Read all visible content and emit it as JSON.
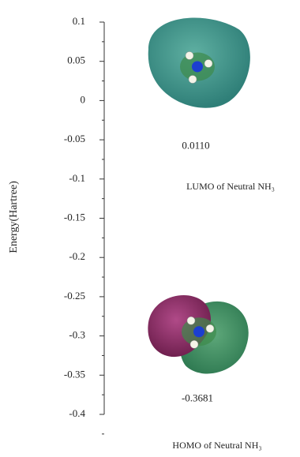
{
  "chart_data": {
    "type": "level",
    "y_label": "Energy(Hartree)",
    "categories": [
      "LUMO of Neutral NH₃",
      "HOMO of Neutral NH₃"
    ],
    "values": [
      0.011,
      -0.3681
    ],
    "value_labels": [
      "0.0110",
      "-0.3681"
    ],
    "ylim": [
      -0.4,
      0.1
    ],
    "yticks": [
      0.1,
      0.05,
      0,
      -0.05,
      -0.1,
      -0.15,
      -0.2,
      -0.25,
      -0.3,
      -0.35,
      -0.4
    ]
  }
}
